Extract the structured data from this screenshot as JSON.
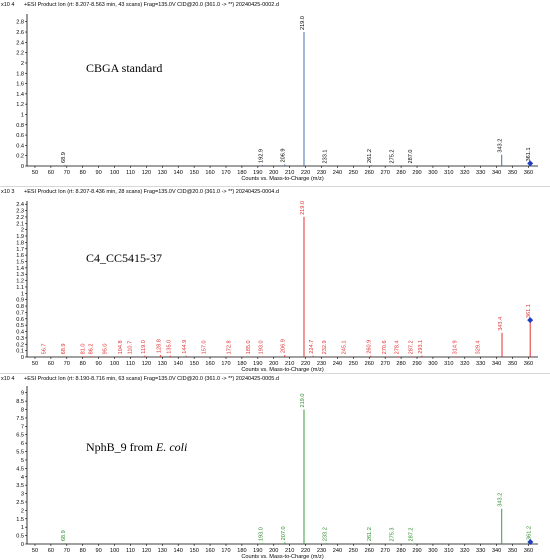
{
  "chart_data": [
    {
      "type": "bar",
      "header": "+ESI Product Ion (rt: 8.207-8.563 min, 43 scans) Frag=135.0V CID@20.0 (361.0 -> **) 20240425-0002.d",
      "exponent": "x10 4",
      "sample_label": "CBGA standard",
      "sample_label_italic": "",
      "xlabel": "Counts vs. Mass-to-Charge (m/z)",
      "xlim": [
        45,
        366
      ],
      "ylim": [
        0,
        2.95
      ],
      "yticks": [
        "0",
        "0.2",
        "0.4",
        "0.6",
        "0.8",
        "1",
        "1.2",
        "1.4",
        "1.6",
        "1.8",
        "2",
        "2.2",
        "2.4",
        "2.6",
        "2.8"
      ],
      "ytick_values": [
        0,
        0.2,
        0.4,
        0.6,
        0.8,
        1,
        1.2,
        1.4,
        1.6,
        1.8,
        2,
        2.2,
        2.4,
        2.6,
        2.8
      ],
      "xticks": [
        "50",
        "60",
        "70",
        "80",
        "90",
        "100",
        "110",
        "120",
        "130",
        "140",
        "150",
        "160",
        "170",
        "180",
        "190",
        "200",
        "210",
        "220",
        "230",
        "240",
        "250",
        "260",
        "270",
        "280",
        "290",
        "300",
        "310",
        "320",
        "330",
        "340",
        "350",
        "360"
      ],
      "xtick_values": [
        50,
        60,
        70,
        80,
        90,
        100,
        110,
        120,
        130,
        140,
        150,
        160,
        170,
        180,
        190,
        200,
        210,
        220,
        230,
        240,
        250,
        260,
        270,
        280,
        290,
        300,
        310,
        320,
        330,
        340,
        350,
        360
      ],
      "color": "#4a6fb0",
      "marker_color": "#1f3fbf",
      "precursor_mz": 361.1,
      "peaks": [
        {
          "mz": 68.9,
          "y": 0.02,
          "label": "68.9"
        },
        {
          "mz": 192.9,
          "y": 0.02,
          "label": "192.9"
        },
        {
          "mz": 206.9,
          "y": 0.03,
          "label": "206.9"
        },
        {
          "mz": 219.0,
          "y": 2.6,
          "label": "219.0"
        },
        {
          "mz": 233.1,
          "y": 0.01,
          "label": "233.1"
        },
        {
          "mz": 261.2,
          "y": 0.02,
          "label": "261.2"
        },
        {
          "mz": 275.2,
          "y": 0.01,
          "label": "275.2"
        },
        {
          "mz": 287.0,
          "y": 0.01,
          "label": "287.0"
        },
        {
          "mz": 343.2,
          "y": 0.22,
          "label": "343.2"
        },
        {
          "mz": 361.1,
          "y": 0.05,
          "label": "361.1"
        }
      ]
    },
    {
      "type": "bar",
      "header": "+ESI Product Ion (rt: 8.207-8.436 min, 28 scans) Frag=135.0V CID@20.0 (361.0 -> **) 20240425-0004.d",
      "exponent": "x10 3",
      "sample_label": "C4_CC5415-37",
      "sample_label_italic": "",
      "xlabel": "Counts vs. Mass-to-Charge (m/z)",
      "xlim": [
        45,
        366
      ],
      "ylim": [
        0,
        2.45
      ],
      "yticks": [
        "0",
        "0.1",
        "0.2",
        "0.3",
        "0.4",
        "0.5",
        "0.6",
        "0.7",
        "0.8",
        "0.9",
        "1",
        "1.1",
        "1.2",
        "1.3",
        "1.4",
        "1.5",
        "1.6",
        "1.7",
        "1.8",
        "1.9",
        "2",
        "2.1",
        "2.2",
        "2.3",
        "2.4"
      ],
      "ytick_values": [
        0,
        0.1,
        0.2,
        0.3,
        0.4,
        0.5,
        0.6,
        0.7,
        0.8,
        0.9,
        1,
        1.1,
        1.2,
        1.3,
        1.4,
        1.5,
        1.6,
        1.7,
        1.8,
        1.9,
        2,
        2.1,
        2.2,
        2.3,
        2.4
      ],
      "xticks": [
        "50",
        "60",
        "70",
        "80",
        "90",
        "100",
        "110",
        "120",
        "130",
        "140",
        "150",
        "160",
        "170",
        "180",
        "190",
        "200",
        "210",
        "220",
        "230",
        "240",
        "250",
        "260",
        "270",
        "280",
        "290",
        "300",
        "310",
        "320",
        "330",
        "340",
        "350",
        "360"
      ],
      "xtick_values": [
        50,
        60,
        70,
        80,
        90,
        100,
        110,
        120,
        130,
        140,
        150,
        160,
        170,
        180,
        190,
        200,
        210,
        220,
        230,
        240,
        250,
        260,
        270,
        280,
        290,
        300,
        310,
        320,
        330,
        340,
        350,
        360
      ],
      "color": "#e03030",
      "marker_color": "#1f3fbf",
      "precursor_mz": 361.1,
      "peaks": [
        {
          "mz": 56.7,
          "y": 0.01,
          "label": "56.7"
        },
        {
          "mz": 68.9,
          "y": 0.01,
          "label": "68.9"
        },
        {
          "mz": 81.0,
          "y": 0.01,
          "label": "81.0"
        },
        {
          "mz": 86.2,
          "y": 0.01,
          "label": "86.2"
        },
        {
          "mz": 95.0,
          "y": 0.01,
          "label": "95.0"
        },
        {
          "mz": 104.8,
          "y": 0.01,
          "label": "104.8"
        },
        {
          "mz": 110.7,
          "y": 0.01,
          "label": "110.7"
        },
        {
          "mz": 119.0,
          "y": 0.02,
          "label": "119.0"
        },
        {
          "mz": 128.8,
          "y": 0.03,
          "label": "128.8"
        },
        {
          "mz": 135.0,
          "y": 0.02,
          "label": "135.0"
        },
        {
          "mz": 144.9,
          "y": 0.02,
          "label": "144.9"
        },
        {
          "mz": 157.0,
          "y": 0.01,
          "label": "157.0"
        },
        {
          "mz": 172.8,
          "y": 0.01,
          "label": "172.8"
        },
        {
          "mz": 185.0,
          "y": 0.01,
          "label": "185.0"
        },
        {
          "mz": 193.0,
          "y": 0.01,
          "label": "193.0"
        },
        {
          "mz": 206.9,
          "y": 0.03,
          "label": "206.9"
        },
        {
          "mz": 219.0,
          "y": 2.2,
          "label": "219.0"
        },
        {
          "mz": 224.7,
          "y": 0.02,
          "label": "224.7"
        },
        {
          "mz": 232.9,
          "y": 0.01,
          "label": "232.9"
        },
        {
          "mz": 245.1,
          "y": 0.01,
          "label": "245.1"
        },
        {
          "mz": 260.9,
          "y": 0.02,
          "label": "260.9"
        },
        {
          "mz": 270.6,
          "y": 0.01,
          "label": "270.6"
        },
        {
          "mz": 278.4,
          "y": 0.01,
          "label": "278.4"
        },
        {
          "mz": 287.2,
          "y": 0.01,
          "label": "287.2"
        },
        {
          "mz": 293.1,
          "y": 0.02,
          "label": "293.1"
        },
        {
          "mz": 314.9,
          "y": 0.01,
          "label": "314.9"
        },
        {
          "mz": 329.4,
          "y": 0.01,
          "label": "329.4"
        },
        {
          "mz": 343.4,
          "y": 0.38,
          "label": "343.4"
        },
        {
          "mz": 361.1,
          "y": 0.58,
          "label": "361.1"
        }
      ]
    },
    {
      "type": "bar",
      "header": "+ESI Product Ion (rt: 8.190-8.716 min, 63 scans) Frag=135.0V CID@20.0 (361.0 -> **) 20240425-0005.d",
      "exponent": "x10 4",
      "sample_label": "NphB_9 from ",
      "sample_label_italic": "E. coli",
      "xlabel": "Counts vs. Mass-to-Charge (m/z)",
      "xlim": [
        45,
        366
      ],
      "ylim": [
        0,
        9.4
      ],
      "yticks": [
        "0",
        "0.5",
        "1",
        "1.5",
        "2",
        "2.5",
        "3",
        "3.5",
        "4",
        "4.5",
        "5",
        "5.5",
        "6",
        "6.5",
        "7",
        "7.5",
        "8",
        "8.5",
        "9"
      ],
      "ytick_values": [
        0,
        0.5,
        1,
        1.5,
        2,
        2.5,
        3,
        3.5,
        4,
        4.5,
        5,
        5.5,
        6,
        6.5,
        7,
        7.5,
        8,
        8.5,
        9
      ],
      "xticks": [
        "50",
        "60",
        "70",
        "80",
        "90",
        "100",
        "110",
        "120",
        "130",
        "140",
        "150",
        "160",
        "170",
        "180",
        "190",
        "200",
        "210",
        "220",
        "230",
        "240",
        "250",
        "260",
        "270",
        "280",
        "290",
        "300",
        "310",
        "320",
        "330",
        "340",
        "350",
        "360"
      ],
      "xtick_values": [
        50,
        60,
        70,
        80,
        90,
        100,
        110,
        120,
        130,
        140,
        150,
        160,
        170,
        180,
        190,
        200,
        210,
        220,
        230,
        240,
        250,
        260,
        270,
        280,
        290,
        300,
        310,
        320,
        330,
        340,
        350,
        360
      ],
      "color": "#3aa03a",
      "marker_color": "#1f3fbf",
      "precursor_mz": 361.2,
      "peaks": [
        {
          "mz": 68.9,
          "y": 0.05,
          "label": "68.9"
        },
        {
          "mz": 193.0,
          "y": 0.05,
          "label": "193.0"
        },
        {
          "mz": 207.0,
          "y": 0.1,
          "label": "207.0"
        },
        {
          "mz": 219.0,
          "y": 8.0,
          "label": "219.0"
        },
        {
          "mz": 233.2,
          "y": 0.05,
          "label": "233.2"
        },
        {
          "mz": 261.2,
          "y": 0.05,
          "label": "261.2"
        },
        {
          "mz": 275.3,
          "y": 0.03,
          "label": "275.3"
        },
        {
          "mz": 287.2,
          "y": 0.03,
          "label": "287.2"
        },
        {
          "mz": 343.2,
          "y": 2.1,
          "label": "343.2"
        },
        {
          "mz": 361.2,
          "y": 0.12,
          "label": "361.2"
        }
      ]
    }
  ]
}
